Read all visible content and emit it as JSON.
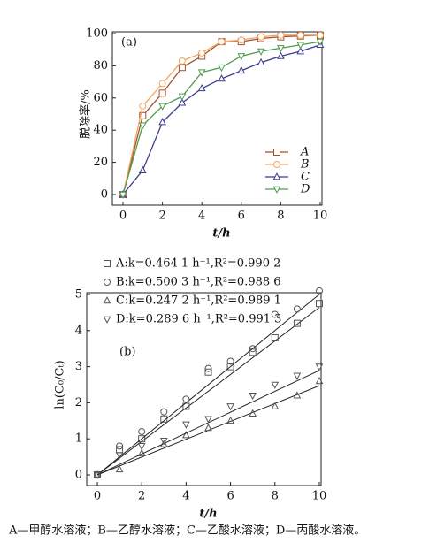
{
  "chart_data": [
    {
      "type": "line",
      "panel_label": "(a)",
      "x_label": "t/h",
      "y_label": "脱除率/%",
      "x": [
        0,
        1,
        2,
        3,
        4,
        5,
        6,
        7,
        8,
        9,
        10
      ],
      "xlim": [
        0,
        10
      ],
      "xticks": [
        0,
        2,
        4,
        6,
        8,
        10
      ],
      "ylim": [
        0,
        100
      ],
      "yticks": [
        0,
        20,
        40,
        60,
        80,
        100
      ],
      "legend": "lower right",
      "series": [
        {
          "name": "A",
          "color": "#a0522d",
          "marker": "square",
          "values": [
            0,
            49,
            63,
            79,
            86,
            95,
            95,
            97,
            98,
            98.5,
            99
          ]
        },
        {
          "name": "B",
          "color": "#f4a460",
          "marker": "circle",
          "values": [
            0,
            55,
            69,
            83,
            88,
            95,
            96,
            98,
            99,
            99,
            99
          ]
        },
        {
          "name": "C",
          "color": "#3b3b8f",
          "marker": "triangle",
          "values": [
            0,
            15,
            45,
            57,
            66,
            72,
            77,
            82,
            86,
            89,
            93
          ]
        },
        {
          "name": "D",
          "color": "#4f9a4f",
          "marker": "triangle-down",
          "values": [
            0,
            43,
            55,
            61,
            76,
            79,
            86,
            89,
            91,
            93,
            95
          ]
        }
      ]
    },
    {
      "type": "scatter",
      "panel_label": "(b)",
      "x_label": "t/h",
      "y_label": "ln(C₀/Cₜ)",
      "x": [
        0,
        1,
        2,
        3,
        4,
        5,
        6,
        7,
        8,
        9,
        10
      ],
      "xlim": [
        0,
        10
      ],
      "xticks": [
        0,
        2,
        4,
        6,
        8,
        10
      ],
      "ylim": [
        0,
        5
      ],
      "yticks": [
        0,
        1,
        2,
        3,
        4,
        5
      ],
      "legend": "upper left",
      "series": [
        {
          "name": "A:k=0.464 1 h⁻¹,R²=0.990 2",
          "k": 0.4641,
          "color": "#555555",
          "marker": "square",
          "values": [
            0,
            0.7,
            1.0,
            1.55,
            1.9,
            2.85,
            3.0,
            3.4,
            3.8,
            4.2,
            4.75
          ]
        },
        {
          "name": "B:k=0.500 3 h⁻¹,R²=0.988 6",
          "k": 0.5003,
          "color": "#555555",
          "marker": "circle",
          "values": [
            0,
            0.8,
            1.2,
            1.75,
            2.1,
            2.95,
            3.15,
            3.5,
            4.45,
            4.6,
            5.1
          ]
        },
        {
          "name": "C:k=0.247 2 h⁻¹,R²=0.989 1",
          "k": 0.2472,
          "color": "#555555",
          "marker": "triangle",
          "values": [
            0,
            0.15,
            0.6,
            0.85,
            1.1,
            1.3,
            1.5,
            1.7,
            1.9,
            2.2,
            2.6
          ]
        },
        {
          "name": "D:k=0.289 6 h⁻¹,R²=0.991 3",
          "k": 0.2896,
          "color": "#555555",
          "marker": "triangle-down",
          "values": [
            0,
            0.55,
            0.8,
            0.95,
            1.4,
            1.55,
            1.9,
            2.2,
            2.5,
            2.75,
            3.0
          ]
        }
      ]
    }
  ],
  "caption": "A—甲醇水溶液；B—乙醇水溶液；C—乙酸水溶液；D—丙酸水溶液。"
}
